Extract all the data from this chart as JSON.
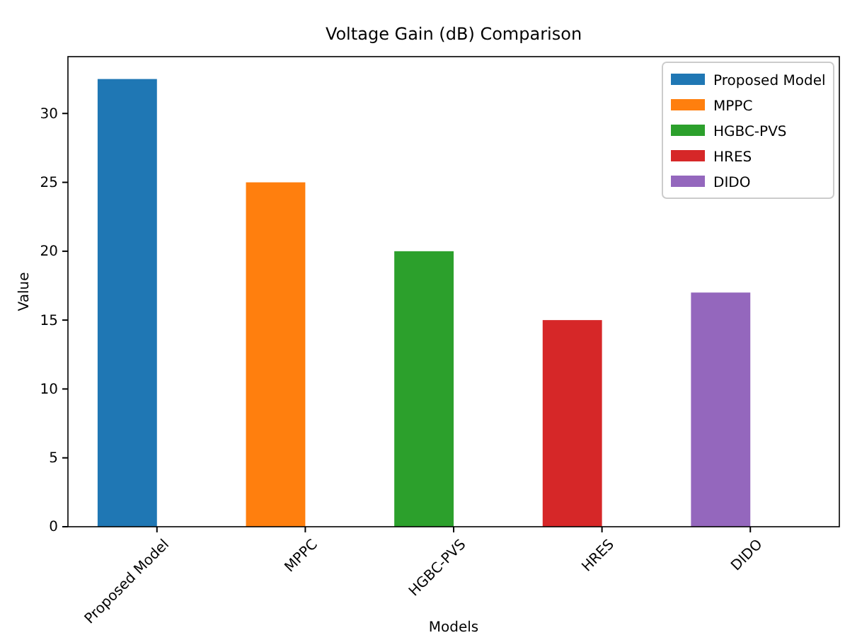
{
  "chart_data": {
    "type": "bar",
    "title": "Voltage Gain (dB) Comparison",
    "xlabel": "Models",
    "ylabel": "Value",
    "categories": [
      "Proposed Model",
      "MPPC",
      "HGBC-PVS",
      "HRES",
      "DIDO"
    ],
    "series": [
      {
        "name": "Proposed Model",
        "color": "#1f77b4",
        "values": [
          32.5,
          null,
          null,
          null,
          null
        ]
      },
      {
        "name": "MPPC",
        "color": "#ff7f0e",
        "values": [
          null,
          25,
          null,
          null,
          null
        ]
      },
      {
        "name": "HGBC-PVS",
        "color": "#2ca02c",
        "values": [
          null,
          null,
          20,
          null,
          null
        ]
      },
      {
        "name": "HRES",
        "color": "#d62728",
        "values": [
          null,
          null,
          null,
          15,
          null
        ]
      },
      {
        "name": "DIDO",
        "color": "#9467bd",
        "values": [
          null,
          null,
          null,
          null,
          17
        ]
      }
    ],
    "ylim": [
      0,
      34.125
    ],
    "yticks": [
      0,
      5,
      10,
      15,
      20,
      25,
      30
    ],
    "legend": "top right",
    "grid": false
  }
}
